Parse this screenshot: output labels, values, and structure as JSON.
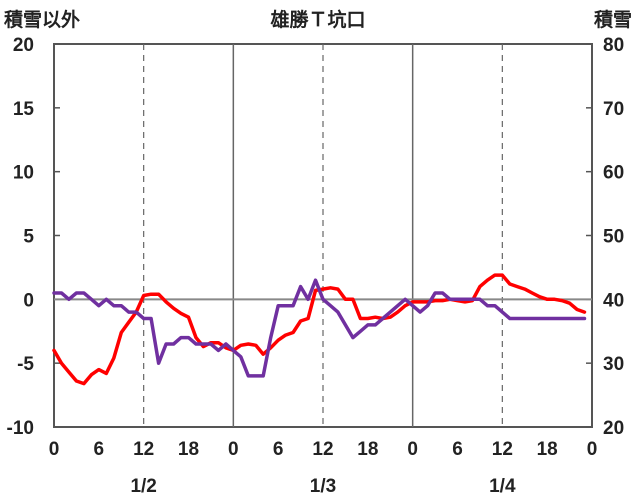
{
  "chart_data": {
    "type": "line",
    "title": "雄勝Ｔ坑口",
    "left_axis": {
      "label": "積雪以外",
      "ylim": [
        -10,
        20
      ],
      "ticks": [
        "-10",
        "-5",
        "0",
        "5",
        "10",
        "15",
        "20"
      ]
    },
    "right_axis": {
      "label": "積雪",
      "ylim": [
        20,
        80
      ],
      "ticks": [
        "20",
        "30",
        "40",
        "50",
        "60",
        "70",
        "80"
      ]
    },
    "x_hours": {
      "range": [
        0,
        72
      ],
      "tick_labels": [
        "0",
        "6",
        "12",
        "18",
        "0",
        "6",
        "12",
        "18",
        "0",
        "6",
        "12",
        "18",
        "0"
      ]
    },
    "date_labels": [
      {
        "text": "1/2",
        "hour": 12
      },
      {
        "text": "1/3",
        "hour": 36
      },
      {
        "text": "1/4",
        "hour": 60
      }
    ],
    "grid": "vertical dashed at hour 12/36/60, solid at day boundaries; zero line",
    "series": [
      {
        "color": "#ff0000",
        "axis": "left",
        "x": [
          0,
          1,
          2,
          3,
          4,
          5,
          6,
          7,
          8,
          9,
          10,
          11,
          12,
          13,
          14,
          15,
          16,
          17,
          18,
          19,
          20,
          21,
          22,
          23,
          24,
          25,
          26,
          27,
          28,
          29,
          30,
          31,
          32,
          33,
          34,
          35,
          36,
          37,
          38,
          39,
          40,
          41,
          42,
          43,
          44,
          45,
          46,
          47,
          48,
          49,
          50,
          51,
          52,
          53,
          54,
          55,
          56,
          57,
          58,
          59,
          60,
          61,
          62,
          63,
          64,
          65,
          66,
          67,
          68,
          69,
          70,
          71
        ],
        "values": [
          -4.0,
          -5.0,
          -5.7,
          -6.4,
          -6.6,
          -5.9,
          -5.5,
          -5.8,
          -4.6,
          -2.6,
          -1.8,
          -1.0,
          0.3,
          0.4,
          0.4,
          -0.2,
          -0.7,
          -1.1,
          -1.4,
          -3.0,
          -3.7,
          -3.4,
          -3.4,
          -3.8,
          -4.0,
          -3.6,
          -3.5,
          -3.6,
          -4.3,
          -3.8,
          -3.2,
          -2.8,
          -2.6,
          -1.7,
          -1.5,
          0.7,
          0.8,
          0.9,
          0.8,
          0.0,
          0.0,
          -1.5,
          -1.5,
          -1.4,
          -1.5,
          -1.4,
          -1.0,
          -0.5,
          -0.2,
          -0.2,
          -0.2,
          -0.1,
          -0.1,
          0.0,
          -0.1,
          -0.2,
          -0.1,
          1.0,
          1.5,
          1.9,
          1.9,
          1.2,
          1.0,
          0.8,
          0.5,
          0.2,
          0.0,
          0.0,
          -0.1,
          -0.3,
          -0.8,
          -1.0
        ]
      },
      {
        "color": "#7030a0",
        "axis": "left",
        "x": [
          0,
          1,
          2,
          3,
          4,
          5,
          6,
          7,
          8,
          9,
          10,
          11,
          12,
          13,
          14,
          15,
          16,
          17,
          18,
          19,
          20,
          21,
          22,
          23,
          24,
          25,
          26,
          27,
          28,
          29,
          30,
          31,
          32,
          33,
          34,
          35,
          36,
          37,
          38,
          39,
          40,
          41,
          42,
          43,
          44,
          45,
          46,
          47,
          48,
          49,
          50,
          51,
          52,
          53,
          54,
          55,
          56,
          57,
          58,
          59,
          60,
          61,
          62,
          63,
          64,
          65,
          66,
          67,
          68,
          69,
          70,
          71
        ],
        "values": [
          0.5,
          0.5,
          0.0,
          0.5,
          0.5,
          0.0,
          -0.5,
          0.0,
          -0.5,
          -0.5,
          -1.0,
          -1.0,
          -1.5,
          -1.5,
          -5.0,
          -3.5,
          -3.5,
          -3.0,
          -3.0,
          -3.5,
          -3.5,
          -3.5,
          -4.0,
          -3.5,
          -4.0,
          -4.5,
          -6.0,
          -6.0,
          -6.0,
          -3.0,
          -0.5,
          -0.5,
          -0.5,
          1.0,
          0.0,
          1.5,
          0.0,
          -0.5,
          -1.0,
          -2.0,
          -3.0,
          -2.5,
          -2.0,
          -2.0,
          -1.5,
          -1.0,
          -0.5,
          0.0,
          -0.5,
          -1.0,
          -0.5,
          0.5,
          0.5,
          0.0,
          0.0,
          0.0,
          0.0,
          0.0,
          -0.5,
          -0.5,
          -1.0,
          -1.5,
          -1.5,
          -1.5,
          -1.5,
          -1.5,
          -1.5,
          -1.5,
          -1.5,
          -1.5,
          -1.5,
          -1.5
        ]
      }
    ]
  }
}
